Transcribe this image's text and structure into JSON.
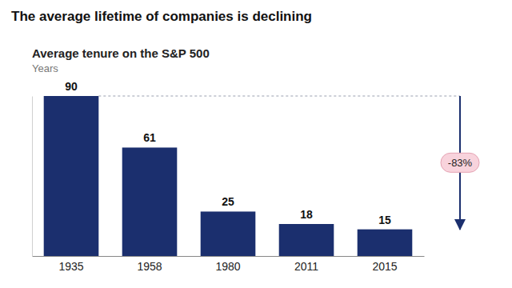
{
  "chart_data": {
    "type": "bar",
    "title": "The average lifetime of companies is declining",
    "subtitle": "Average tenure on the S&P 500",
    "y_label": "Years",
    "categories": [
      "1935",
      "1958",
      "1980",
      "2011",
      "2015"
    ],
    "values": [
      90,
      61,
      25,
      18,
      15
    ],
    "color": "#1b2f6e",
    "ylim": [
      0,
      90
    ],
    "tick_labels": "x",
    "data_labels": true,
    "annotation": "-83%"
  }
}
